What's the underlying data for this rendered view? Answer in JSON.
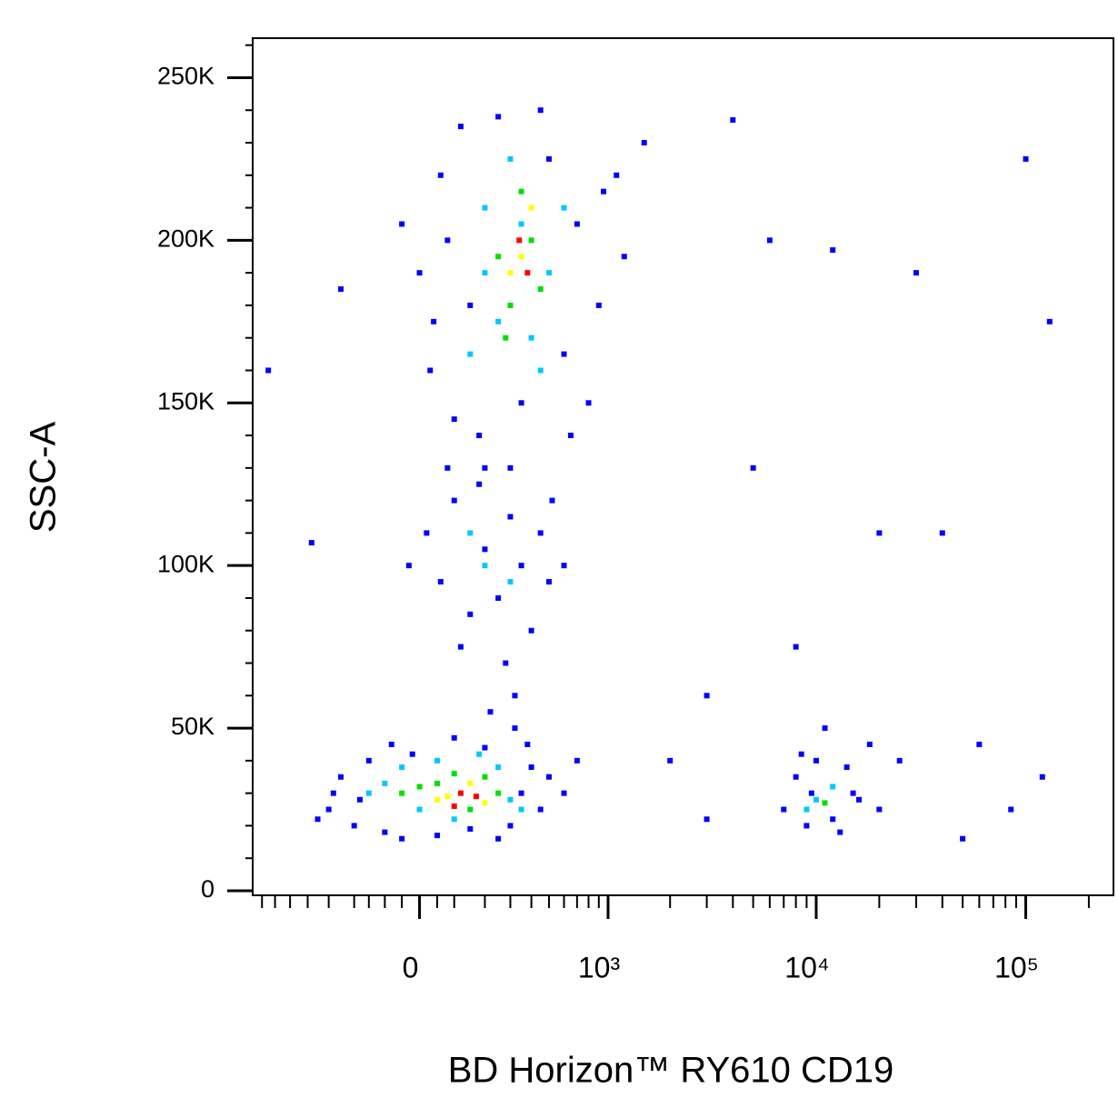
{
  "chart_data": {
    "type": "scatter",
    "x_label": "BD Horizon™ RY610 CD19",
    "y_label": "SSC-A",
    "xscale": "biexponential",
    "xlim": [
      -780,
      262144
    ],
    "ylim": [
      -1400,
      262144
    ],
    "xticks": [
      0,
      {
        "value": 1000,
        "label": "10³"
      },
      {
        "value": 10000,
        "label": "10⁴"
      },
      {
        "value": 100000,
        "label": "10⁵"
      }
    ],
    "xminorticks": [
      -700,
      -600,
      -500,
      -400,
      -300,
      -200,
      -150,
      -100,
      -50,
      50,
      100,
      200,
      300,
      400,
      500,
      600,
      700,
      800,
      900,
      2000,
      3000,
      4000,
      5000,
      6000,
      7000,
      8000,
      9000,
      20000,
      30000,
      40000,
      50000,
      60000,
      70000,
      80000,
      90000,
      200000
    ],
    "yticks": [
      {
        "value": 0,
        "label": "0"
      },
      {
        "value": 50000,
        "label": "50K"
      },
      {
        "value": 100000,
        "label": "100K"
      },
      {
        "value": 150000,
        "label": "150K"
      },
      {
        "value": 200000,
        "label": "200K"
      },
      {
        "value": 250000,
        "label": "250K"
      }
    ],
    "yminorticks": [
      10000,
      20000,
      30000,
      40000,
      60000,
      70000,
      80000,
      90000,
      110000,
      120000,
      130000,
      140000,
      160000,
      170000,
      180000,
      190000,
      210000,
      220000,
      230000,
      240000,
      260000
    ],
    "series": [
      {
        "color": "#0000ff",
        "x": [
          -300,
          -250,
          -200,
          -150,
          -100,
          -80,
          -20,
          50,
          100,
          200,
          300,
          350,
          400,
          450,
          500,
          -280,
          -350,
          250,
          150,
          -50,
          600,
          380,
          -180,
          320,
          700,
          0,
          30,
          60,
          100,
          120,
          180,
          250,
          350,
          500,
          700,
          900,
          1100,
          800,
          600,
          80,
          40,
          300,
          450,
          1500,
          1200,
          -50,
          200,
          650,
          950,
          150,
          20,
          60,
          100,
          150,
          200,
          250,
          300,
          350,
          400,
          450,
          500,
          80,
          180,
          280,
          520,
          600,
          120,
          -30,
          320,
          220,
          7000,
          8000,
          9000,
          10000,
          12000,
          14000,
          16000,
          18000,
          11000,
          15000,
          20000,
          9500,
          13000,
          25000,
          8500,
          3000,
          5000,
          8000,
          20000,
          40000,
          100000,
          130000,
          30000,
          12000,
          6000,
          4000,
          60000,
          120000,
          50000,
          3000,
          2000,
          85000,
          -650,
          -380,
          -250
        ],
        "values": [
          25000,
          35000,
          20000,
          40000,
          18000,
          45000,
          42000,
          17000,
          47000,
          44000,
          20000,
          30000,
          38000,
          25000,
          35000,
          30000,
          22000,
          16000,
          19000,
          16000,
          30000,
          45000,
          28000,
          50000,
          40000,
          190000,
          160000,
          220000,
          145000,
          235000,
          140000,
          238000,
          150000,
          225000,
          205000,
          180000,
          220000,
          150000,
          165000,
          200000,
          175000,
          130000,
          240000,
          230000,
          195000,
          205000,
          130000,
          140000,
          215000,
          180000,
          110000,
          95000,
          120000,
          85000,
          105000,
          90000,
          115000,
          100000,
          80000,
          110000,
          95000,
          130000,
          125000,
          70000,
          120000,
          100000,
          75000,
          100000,
          60000,
          55000,
          25000,
          35000,
          20000,
          40000,
          22000,
          38000,
          28000,
          45000,
          50000,
          30000,
          25000,
          30000,
          18000,
          40000,
          42000,
          60000,
          130000,
          75000,
          110000,
          110000,
          225000,
          175000,
          190000,
          197000,
          200000,
          237000,
          45000,
          35000,
          16000,
          22000,
          40000,
          25000,
          160000,
          107000,
          185000
        ]
      },
      {
        "color": "#00c8ff",
        "x": [
          -150,
          -50,
          0,
          50,
          100,
          250,
          300,
          -100,
          180,
          350,
          150,
          200,
          300,
          400,
          500,
          250,
          600,
          350,
          200,
          450,
          200,
          300,
          150,
          10000,
          12000,
          9000
        ],
        "values": [
          30000,
          38000,
          25000,
          40000,
          22000,
          38000,
          28000,
          33000,
          42000,
          25000,
          165000,
          210000,
          225000,
          170000,
          190000,
          175000,
          210000,
          205000,
          190000,
          160000,
          100000,
          95000,
          110000,
          28000,
          32000,
          25000
        ]
      },
      {
        "color": "#00e000",
        "x": [
          -50,
          50,
          150,
          200,
          0,
          250,
          100,
          250,
          300,
          400,
          350,
          450,
          280,
          11000
        ],
        "values": [
          30000,
          33000,
          25000,
          35000,
          32000,
          30000,
          36000,
          195000,
          180000,
          200000,
          215000,
          185000,
          170000,
          27000
        ]
      },
      {
        "color": "#ffff00",
        "x": [
          80,
          150,
          200,
          50,
          350,
          400,
          300
        ],
        "values": [
          29000,
          33000,
          27000,
          28000,
          195000,
          210000,
          190000
        ]
      },
      {
        "color": "#ff0000",
        "x": [
          120,
          170,
          100,
          380,
          340
        ],
        "values": [
          30000,
          29000,
          26000,
          190000,
          200000
        ]
      }
    ]
  }
}
